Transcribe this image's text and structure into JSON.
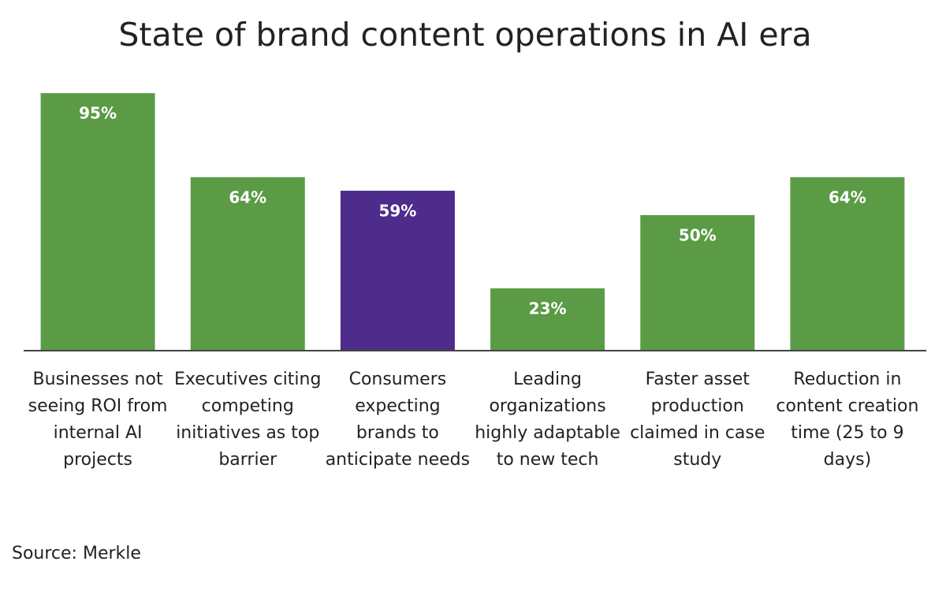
{
  "chart_data": {
    "type": "bar",
    "title": "State of brand content operations in AI era",
    "categories": [
      "Businesses not seeing ROI from internal AI projects",
      "Executives citing competing initiatives as top barrier",
      "Consumers expecting brands to anticipate needs",
      "Leading organizations highly adaptable to new tech",
      "Faster asset production claimed in case study",
      "Reduction in content creation time (25 to 9 days)"
    ],
    "values": [
      95,
      64,
      59,
      23,
      50,
      64
    ],
    "value_labels": [
      "95%",
      "64%",
      "59%",
      "23%",
      "50%",
      "64%"
    ],
    "colors": [
      "#5b9b46",
      "#5b9b46",
      "#4e2c8c",
      "#5b9b46",
      "#5b9b46",
      "#5b9b46"
    ],
    "ylim": [
      0,
      100
    ],
    "source": "Source: Merkle"
  }
}
